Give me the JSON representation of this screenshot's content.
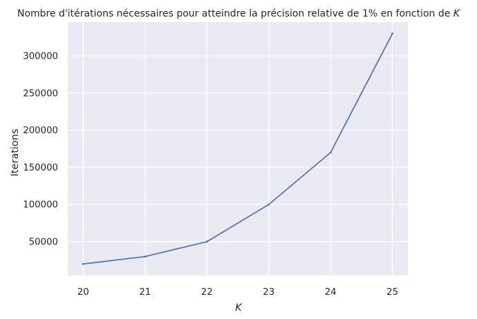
{
  "chart_data": {
    "type": "line",
    "title_prefix": "Nombre d'itérations nécessaires pour atteindre la précision relative de 1% en fonction de ",
    "title_symbol": "K",
    "xlabel": "K",
    "ylabel": "Iterations",
    "x": [
      20,
      21,
      22,
      23,
      24,
      25
    ],
    "series": [
      {
        "values": [
          20000,
          30000,
          50000,
          100000,
          170000,
          330000
        ]
      }
    ],
    "xlim": [
      19.75,
      25.25
    ],
    "ylim": [
      4500,
      345500
    ],
    "x_ticks": [
      20,
      21,
      22,
      23,
      24,
      25
    ],
    "y_ticks": [
      50000,
      100000,
      150000,
      200000,
      250000,
      300000
    ],
    "grid": true,
    "colors": {
      "background": "#eaeaf2",
      "grid": "#ffffff",
      "line": "#4c72b0",
      "text": "#262626"
    }
  }
}
